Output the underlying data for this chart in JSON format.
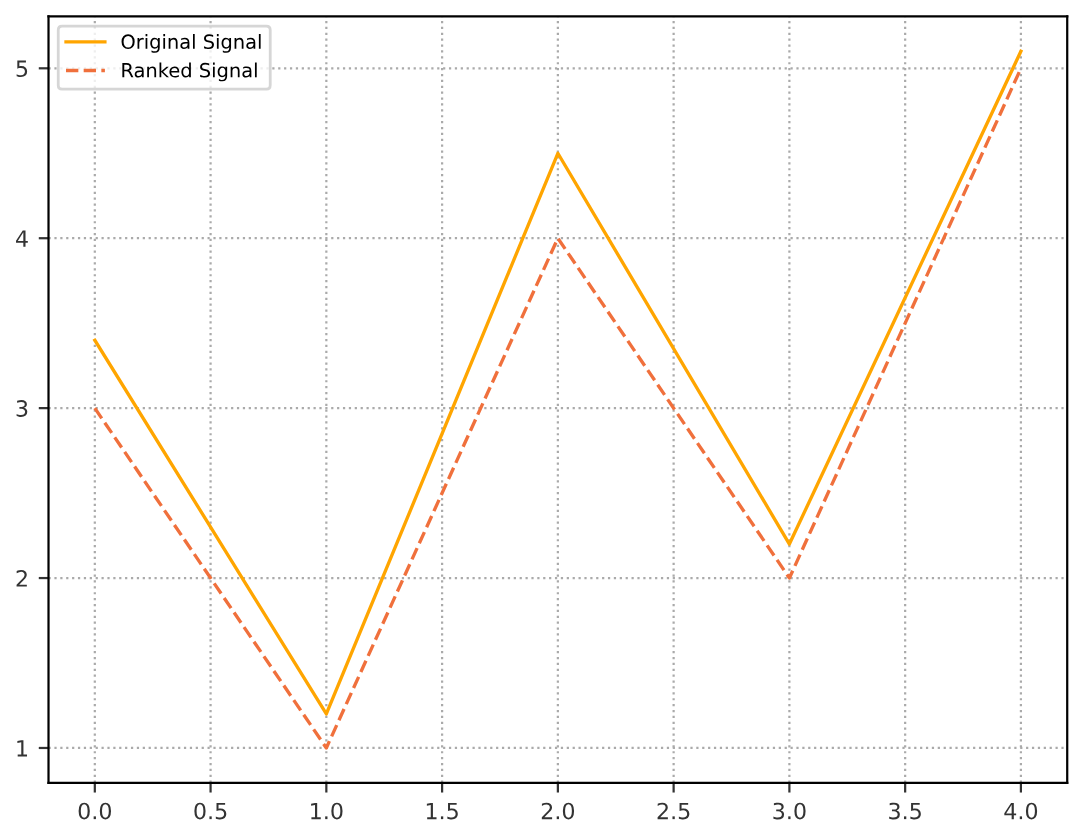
{
  "chart_data": {
    "type": "line",
    "x": [
      0,
      1,
      2,
      3,
      4
    ],
    "series": [
      {
        "name": "Original Signal",
        "color": "#ffa500",
        "values": [
          3.4,
          1.2,
          4.5,
          2.2,
          5.1
        ],
        "line_style": "solid"
      },
      {
        "name": "Ranked Signal",
        "color": "#f0703c",
        "values": [
          3,
          1,
          4,
          2,
          5
        ],
        "line_style": "dashed"
      }
    ],
    "xlim": [
      -0.2,
      4.2
    ],
    "xticks": [
      {
        "value": 0,
        "label": "0.0"
      },
      {
        "value": 0.5,
        "label": "0.5"
      },
      {
        "value": 1,
        "label": "1.0"
      },
      {
        "value": 1.5,
        "label": "1.5"
      },
      {
        "value": 2,
        "label": "2.0"
      },
      {
        "value": 2.5,
        "label": "2.5"
      },
      {
        "value": 3,
        "label": "3.0"
      },
      {
        "value": 3.5,
        "label": "3.5"
      },
      {
        "value": 4,
        "label": "4.0"
      }
    ],
    "ylim": [
      0.795,
      5.305
    ],
    "yticks": [
      1,
      2,
      3,
      4,
      5
    ],
    "grid": true,
    "legend": "top left",
    "marker": "none"
  }
}
